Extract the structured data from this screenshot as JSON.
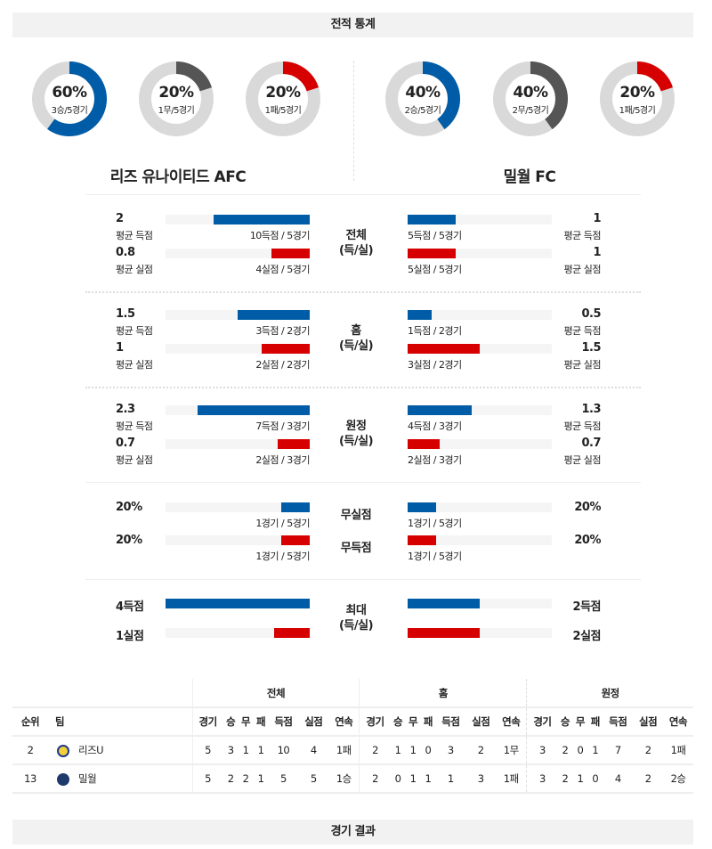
{
  "header": {
    "title": "전적 통계",
    "footer": "경기 결과"
  },
  "colors": {
    "blue": "#005ca6",
    "red": "#d60000",
    "gray": "#555555",
    "track": "#d9d9d9"
  },
  "teams": {
    "home": {
      "name": "리즈 유나이티드 AFC",
      "short": "리즈U",
      "rank": "2",
      "donuts": [
        {
          "pct": "60%",
          "sub": "3승/5경기",
          "value": 0.6,
          "color": "#005ca6"
        },
        {
          "pct": "20%",
          "sub": "1무/5경기",
          "value": 0.2,
          "color": "#555555"
        },
        {
          "pct": "20%",
          "sub": "1패/5경기",
          "value": 0.2,
          "color": "#d60000"
        }
      ]
    },
    "away": {
      "name": "밀월 FC",
      "short": "밀월",
      "rank": "13",
      "donuts": [
        {
          "pct": "40%",
          "sub": "2승/5경기",
          "value": 0.4,
          "color": "#005ca6"
        },
        {
          "pct": "40%",
          "sub": "2무/5경기",
          "value": 0.4,
          "color": "#555555"
        },
        {
          "pct": "20%",
          "sub": "1패/5경기",
          "value": 0.2,
          "color": "#d60000"
        }
      ]
    }
  },
  "sections": [
    {
      "cat": [
        "전체",
        "(득/실)"
      ],
      "rows": [
        {
          "lv": "2",
          "ll": "평균 득점",
          "lnote": "10득점 / 5경기",
          "lf": 0.667,
          "rv": "1",
          "rl": "평균 득점",
          "rnote": "5득점 / 5경기",
          "rf": 0.333,
          "color": "#005ca6"
        },
        {
          "lv": "0.8",
          "ll": "평균 실점",
          "lnote": "4실점 / 5경기",
          "lf": 0.267,
          "rv": "1",
          "rl": "평균 실점",
          "rnote": "5실점 / 5경기",
          "rf": 0.333,
          "color": "#d60000"
        }
      ]
    },
    {
      "cat": [
        "홈",
        "(득/실)"
      ],
      "rows": [
        {
          "lv": "1.5",
          "ll": "평균 득점",
          "lnote": "3득점 / 2경기",
          "lf": 0.5,
          "rv": "0.5",
          "rl": "평균 득점",
          "rnote": "1득점 / 2경기",
          "rf": 0.167,
          "color": "#005ca6"
        },
        {
          "lv": "1",
          "ll": "평균 실점",
          "lnote": "2실점 / 2경기",
          "lf": 0.333,
          "rv": "1.5",
          "rl": "평균 실점",
          "rnote": "3실점 / 2경기",
          "rf": 0.5,
          "color": "#d60000"
        }
      ]
    },
    {
      "cat": [
        "원정",
        "(득/실)"
      ],
      "rows": [
        {
          "lv": "2.3",
          "ll": "평균 득점",
          "lnote": "7득점 / 3경기",
          "lf": 0.778,
          "rv": "1.3",
          "rl": "평균 득점",
          "rnote": "4득점 / 3경기",
          "rf": 0.444,
          "color": "#005ca6"
        },
        {
          "lv": "0.7",
          "ll": "평균 실점",
          "lnote": "2실점 / 3경기",
          "lf": 0.222,
          "rv": "0.7",
          "rl": "평균 실점",
          "rnote": "2실점 / 3경기",
          "rf": 0.222,
          "color": "#d60000"
        }
      ]
    }
  ],
  "pct_section": {
    "rows": [
      {
        "cat": "무실점",
        "lv": "20%",
        "lnote": "1경기 / 5경기",
        "lf": 0.2,
        "rv": "20%",
        "rnote": "1경기 / 5경기",
        "rf": 0.2,
        "color": "#005ca6"
      },
      {
        "cat": "무득점",
        "lv": "20%",
        "lnote": "1경기 / 5경기",
        "lf": 0.2,
        "rv": "20%",
        "rnote": "1경기 / 5경기",
        "rf": 0.2,
        "color": "#d60000"
      }
    ]
  },
  "max_section": {
    "cat": [
      "최대",
      "(득/실)"
    ],
    "rows": [
      {
        "lv": "4득점",
        "lf": 1.0,
        "rv": "2득점",
        "rf": 0.5,
        "color": "#005ca6"
      },
      {
        "lv": "1실점",
        "lf": 0.25,
        "rv": "2실점",
        "rf": 0.5,
        "color": "#d60000"
      }
    ]
  },
  "table": {
    "groups": [
      "전체",
      "홈",
      "원정"
    ],
    "headers": [
      "순위",
      "팀"
    ],
    "sub": [
      "경기",
      "승",
      "무",
      "패",
      "득점",
      "실점",
      "연속"
    ],
    "rows": [
      {
        "rank": "2",
        "team": "리즈U",
        "cells": [
          "5",
          "3",
          "1",
          "1",
          "10",
          "4",
          "1패",
          "2",
          "1",
          "1",
          "0",
          "3",
          "2",
          "1무",
          "3",
          "2",
          "0",
          "1",
          "7",
          "2",
          "1패"
        ]
      },
      {
        "rank": "13",
        "team": "밀월",
        "cells": [
          "5",
          "2",
          "2",
          "1",
          "5",
          "5",
          "1승",
          "2",
          "0",
          "1",
          "1",
          "1",
          "3",
          "1패",
          "3",
          "2",
          "1",
          "0",
          "4",
          "2",
          "2승"
        ]
      }
    ]
  }
}
